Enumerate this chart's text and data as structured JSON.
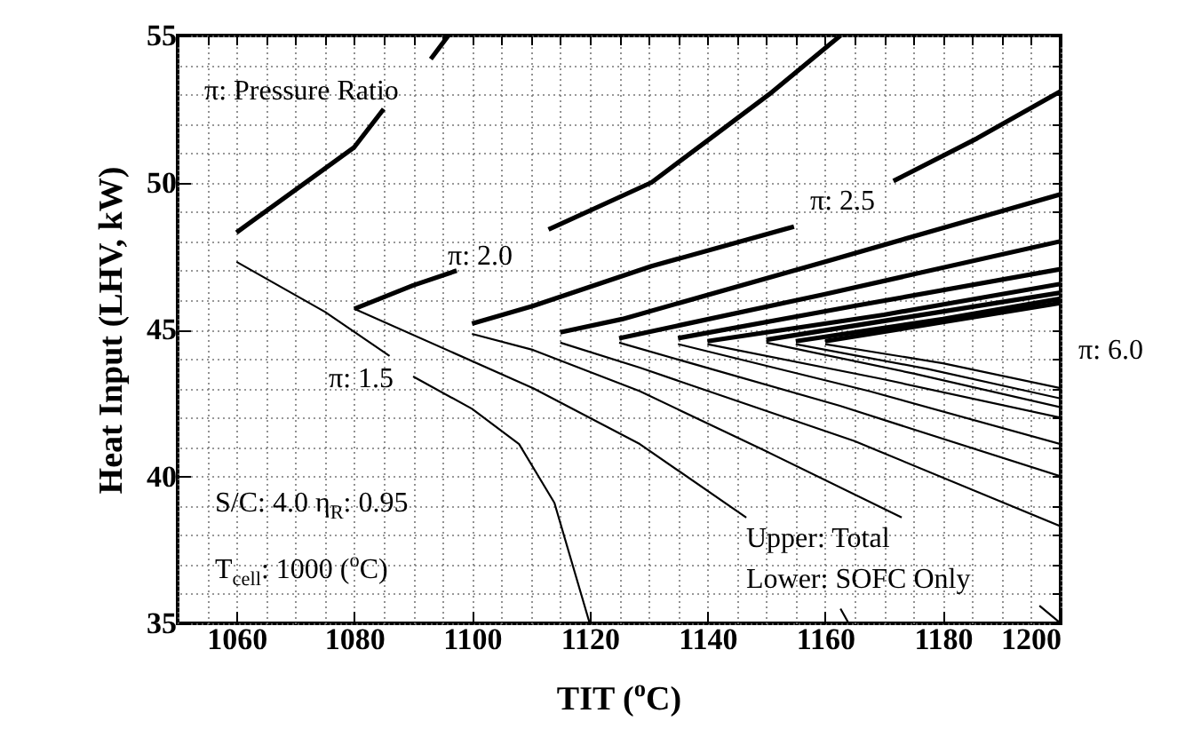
{
  "chart_data": {
    "type": "line",
    "xlabel": "TIT ($^{o}$C)",
    "ylabel": "Heat Input (LHV, kW)",
    "xlim": [
      1050,
      1200
    ],
    "ylim": [
      35,
      55
    ],
    "xticks": [
      {
        "value": 1050,
        "label": null
      },
      {
        "value": 1055,
        "label": null
      },
      1060,
      {
        "value": 1065,
        "label": null
      },
      {
        "value": 1070,
        "label": null
      },
      {
        "value": 1075,
        "label": null
      },
      1080,
      {
        "value": 1085,
        "label": null
      },
      {
        "value": 1090,
        "label": null
      },
      {
        "value": 1095,
        "label": null
      },
      1100,
      {
        "value": 1105,
        "label": null
      },
      {
        "value": 1110,
        "label": null
      },
      {
        "value": 1115,
        "label": null
      },
      1120,
      {
        "value": 1125,
        "label": null
      },
      {
        "value": 1130,
        "label": null
      },
      {
        "value": 1135,
        "label": null
      },
      1140,
      {
        "value": 1145,
        "label": null
      },
      {
        "value": 1150,
        "label": null
      },
      {
        "value": 1155,
        "label": null
      },
      1160,
      {
        "value": 1165,
        "label": null
      },
      {
        "value": 1170,
        "label": null
      },
      {
        "value": 1175,
        "label": null
      },
      1180,
      {
        "value": 1185,
        "label": null
      },
      {
        "value": 1190,
        "label": null
      },
      {
        "value": 1195,
        "label": null
      },
      1200
    ],
    "yticks": [
      35,
      {
        "value": 36,
        "label": null
      },
      {
        "value": 37,
        "label": null
      },
      {
        "value": 38,
        "label": null
      },
      {
        "value": 39,
        "label": null
      },
      40,
      {
        "value": 41,
        "label": null
      },
      {
        "value": 42,
        "label": null
      },
      {
        "value": 43,
        "label": null
      },
      {
        "value": 44,
        "label": null
      },
      45,
      {
        "value": 46,
        "label": null
      },
      {
        "value": 47,
        "label": null
      },
      {
        "value": 48,
        "label": null
      },
      {
        "value": 49,
        "label": null
      },
      50,
      {
        "value": 51,
        "label": null
      },
      {
        "value": 52,
        "label": null
      },
      {
        "value": 53,
        "label": null
      },
      {
        "value": 54,
        "label": null
      },
      55
    ],
    "grid": true,
    "marker": "none",
    "line_style": "solid",
    "series": [
      {
        "color": "#000000",
        "x": [
          1060,
          1070,
          1080,
          1085,
          1088,
          1093,
          1096
        ],
        "values": [
          48.3,
          49.75,
          51.2,
          52.5,
          null,
          54.2,
          55
        ]
      },
      {
        "color": "#000000",
        "x": [
          1060,
          1075,
          1086,
          1088,
          1090,
          1100,
          1108,
          1114,
          1120
        ],
        "values": [
          47.3,
          45.6,
          44.1,
          null,
          43.4,
          42.3,
          41.1,
          39.1,
          35
        ]
      },
      {
        "color": "#000000",
        "x": [
          1080,
          1090,
          1097.4,
          1100,
          1113,
          1130.5,
          1140.5,
          1150.5,
          1162.6
        ],
        "values": [
          45.7,
          46.5,
          47.0,
          null,
          48.4,
          50.0,
          51.5,
          53.0,
          55
        ]
      },
      {
        "color": "#000000",
        "x": [
          1080,
          1110.4,
          1128.5,
          1146.6,
          1150,
          1162.6,
          1164
        ],
        "values": [
          45.7,
          43.0,
          41.1,
          38.6,
          null,
          35.5,
          35
        ]
      },
      {
        "color": "#000000",
        "x": [
          1100,
          1110.4,
          1130.5,
          1154.7,
          1160,
          1171.6,
          1185.8,
          1200
        ],
        "values": [
          45.2,
          45.8,
          47.15,
          48.5,
          null,
          50.05,
          51.5,
          53.1
        ]
      },
      {
        "color": "#000000",
        "x": [
          1100,
          1110.4,
          1128.5,
          1150,
          1173,
          1185,
          1196.4,
          1200
        ],
        "values": [
          44.85,
          44.3,
          42.9,
          40.85,
          38.6,
          null,
          35.6,
          35
        ]
      },
      {
        "color": "#000000",
        "x": [
          1115,
          1125.5,
          1160.8,
          1200
        ],
        "values": [
          44.9,
          45.35,
          47.35,
          49.6
        ]
      },
      {
        "color": "#000000",
        "x": [
          1115,
          1128.5,
          1165,
          1200
        ],
        "values": [
          44.55,
          43.7,
          41.2,
          38.3
        ]
      },
      {
        "color": "#000000",
        "x": [
          1125,
          1160,
          1200
        ],
        "values": [
          44.7,
          46.2,
          48.0
        ]
      },
      {
        "color": "#000000",
        "x": [
          1125,
          1162.5,
          1200
        ],
        "values": [
          44.55,
          42.4,
          40.0
        ]
      },
      {
        "color": "#000000",
        "x": [
          1135,
          1165,
          1200
        ],
        "values": [
          44.7,
          45.8,
          47.05
        ]
      },
      {
        "color": "#000000",
        "x": [
          1135,
          1167.5,
          1200
        ],
        "values": [
          44.5,
          42.9,
          41.1
        ]
      },
      {
        "color": "#000000",
        "x": [
          1140,
          1170,
          1200
        ],
        "values": [
          44.6,
          45.5,
          46.55
        ]
      },
      {
        "color": "#000000",
        "x": [
          1140,
          1170,
          1200
        ],
        "values": [
          44.5,
          43.3,
          42.0
        ]
      },
      {
        "color": "#000000",
        "x": [
          1150,
          1175,
          1200
        ],
        "values": [
          44.65,
          45.45,
          46.25
        ]
      },
      {
        "color": "#000000",
        "x": [
          1150,
          1175,
          1200
        ],
        "values": [
          44.55,
          43.5,
          42.35
        ]
      },
      {
        "color": "#000000",
        "x": [
          1155,
          1180,
          1200
        ],
        "values": [
          44.6,
          45.35,
          46.05
        ]
      },
      {
        "color": "#000000",
        "x": [
          1155,
          1177.5,
          1200
        ],
        "values": [
          44.5,
          43.65,
          42.65
        ]
      },
      {
        "color": "#000000",
        "x": [
          1160,
          1180,
          1200
        ],
        "values": [
          44.6,
          45.25,
          45.9
        ]
      },
      {
        "color": "#000000",
        "x": [
          1160,
          1180,
          1200
        ],
        "values": [
          44.5,
          43.85,
          43.0
        ]
      }
    ],
    "annotations": [
      "π: 1.5",
      "π: 2.0",
      "π: 2.5",
      "π: 6.0",
      "π: Pressure Ratio",
      "S/C: 4.0  η$_{R}$: 0.95",
      "T$_{cell}$: 1000 ($^{o}$C)",
      "Upper: Total",
      "Lower: SOFC Only"
    ]
  }
}
